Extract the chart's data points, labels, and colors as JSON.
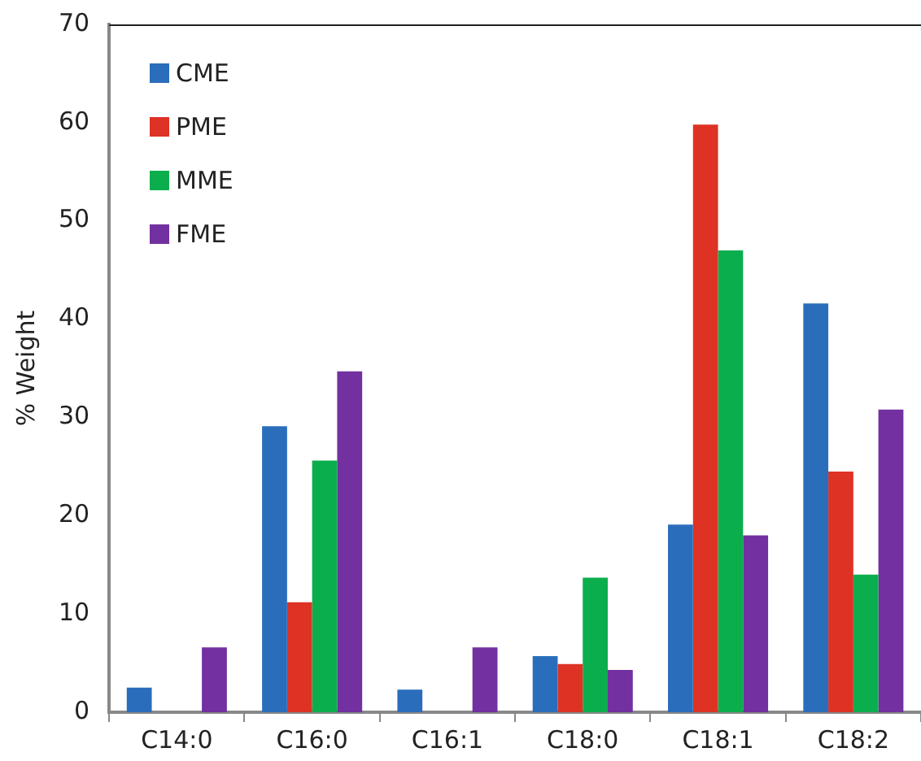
{
  "chart_data": {
    "type": "bar",
    "ylabel": "% Weight",
    "categories": [
      "C14:0",
      "C16:0",
      "C16:1",
      "C18:0",
      "C18:1",
      "C18:2"
    ],
    "series": [
      {
        "name": "CME",
        "color": "#2a6ebb",
        "values": [
          2.5,
          29.1,
          2.3,
          5.7,
          19.1,
          41.6
        ]
      },
      {
        "name": "PME",
        "color": "#de3224",
        "values": [
          0,
          11.2,
          0,
          4.9,
          59.8,
          24.5
        ]
      },
      {
        "name": "MME",
        "color": "#0bae4d",
        "values": [
          0,
          25.6,
          0,
          13.7,
          47,
          14
        ]
      },
      {
        "name": "FME",
        "color": "#7230a0",
        "values": [
          6.6,
          34.7,
          6.6,
          4.3,
          18,
          30.8
        ]
      }
    ],
    "ylim": [
      0,
      70
    ],
    "yticks": [
      0,
      10,
      20,
      30,
      40,
      50,
      60,
      70
    ],
    "grid": false,
    "legend": "top left"
  }
}
